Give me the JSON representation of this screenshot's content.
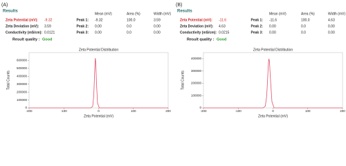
{
  "panels": [
    {
      "label": "(A)",
      "results_title": "Results",
      "headers": [
        "Mean (mV)",
        "Area (%)",
        "Width (mV)"
      ],
      "summary": [
        {
          "label": "Zeta Potential (mV):",
          "value": "-9.32"
        },
        {
          "label": "Zeta Deviation (mV):",
          "value": "3.59"
        },
        {
          "label": "Conductivity (mS/cm):",
          "value": "0.0121"
        }
      ],
      "peaks": [
        {
          "label": "Peak 1:",
          "mean": "-9.32",
          "area": "100.0",
          "width": "3.59"
        },
        {
          "label": "Peak 2:",
          "mean": "0.00",
          "area": "0.0",
          "width": "0.00"
        },
        {
          "label": "Peak 3:",
          "mean": "0.00",
          "area": "0.0",
          "width": "0.00"
        }
      ],
      "quality_label": "Result quality :",
      "quality_value": "Good"
    },
    {
      "label": "(B)",
      "results_title": "Results",
      "headers": [
        "Mean (mV)",
        "Area (%)",
        "Width (mV)"
      ],
      "summary": [
        {
          "label": "Zeta Potential (mV):",
          "value": "-11.6"
        },
        {
          "label": "Zeta Deviation (mV):",
          "value": "4.63"
        },
        {
          "label": "Conductivity (mS/cm):",
          "value": "0.0215"
        }
      ],
      "peaks": [
        {
          "label": "Peak 1:",
          "mean": "-11.6",
          "area": "100.0",
          "width": "4.63"
        },
        {
          "label": "Peak 2:",
          "mean": "0.00",
          "area": "0.0",
          "width": "0.00"
        },
        {
          "label": "Peak 3:",
          "mean": "0.00",
          "area": "0.0",
          "width": "0.00"
        }
      ],
      "quality_label": "Result quality :",
      "quality_value": "Good"
    }
  ],
  "chart_data": [
    {
      "type": "line",
      "title": "Zeta Potential Distribution",
      "x_label": "Zeta Potential (mV)",
      "y_label": "Total Counts",
      "x": [
        -200,
        -22,
        -17,
        -14,
        -12,
        -10,
        -9.32,
        -8,
        -6,
        -3,
        2,
        200
      ],
      "values": [
        0,
        0,
        20000,
        150000,
        380000,
        600000,
        630000,
        560000,
        300000,
        60000,
        0,
        0
      ],
      "color": "#e0506a",
      "xlim": [
        -200,
        200
      ],
      "xticks": [
        -200,
        -100,
        0,
        100,
        200
      ],
      "ylim": [
        0,
        700000
      ],
      "yticks": [
        0,
        100000,
        200000,
        300000,
        400000,
        500000,
        600000
      ]
    },
    {
      "type": "line",
      "title": "Zeta Potential Distribution",
      "x_label": "Zeta Potential (mV)",
      "y_label": "Total Counts",
      "x": [
        -200,
        -28,
        -22,
        -18,
        -15,
        -13,
        -11.6,
        -10,
        -7,
        -3,
        3,
        200
      ],
      "values": [
        0,
        0,
        15000,
        100000,
        260000,
        370000,
        400000,
        370000,
        220000,
        50000,
        0,
        0
      ],
      "color": "#e0506a",
      "xlim": [
        -200,
        200
      ],
      "xticks": [
        -200,
        -100,
        0,
        100,
        200
      ],
      "ylim": [
        0,
        450000
      ],
      "yticks": [
        0,
        100000,
        200000,
        300000,
        400000
      ]
    }
  ]
}
